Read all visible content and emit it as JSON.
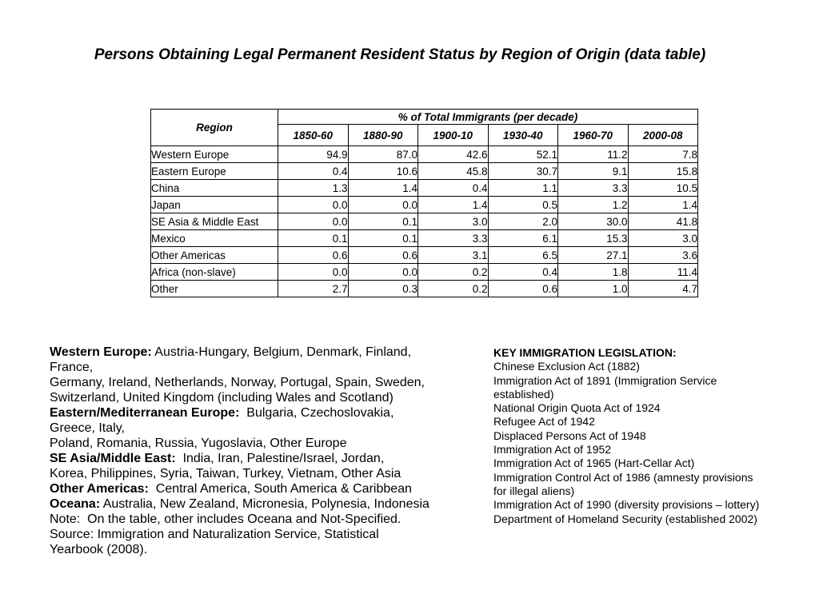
{
  "slide": {
    "title": "Persons Obtaining Legal Permanent Resident Status by Region of Origin (data table)"
  },
  "chart_data": {
    "type": "table",
    "title": "% of Total Immigrants (per decade)",
    "region_header": "Region",
    "columns": [
      "1850-60",
      "1880-90",
      "1900-10",
      "1930-40",
      "1960-70",
      "2000-08"
    ],
    "rows": [
      {
        "region": "Western Europe",
        "values": [
          "94.9",
          "87.0",
          "42.6",
          "52.1",
          "11.2",
          "7.8"
        ]
      },
      {
        "region": "Eastern Europe",
        "values": [
          "0.4",
          "10.6",
          "45.8",
          "30.7",
          "9.1",
          "15.8"
        ]
      },
      {
        "region": "China",
        "values": [
          "1.3",
          "1.4",
          "0.4",
          "1.1",
          "3.3",
          "10.5"
        ]
      },
      {
        "region": "Japan",
        "values": [
          "0.0",
          "0.0",
          "1.4",
          "0.5",
          "1.2",
          "1.4"
        ]
      },
      {
        "region": "SE Asia & Middle East",
        "values": [
          "0.0",
          "0.1",
          "3.0",
          "2.0",
          "30.0",
          "41.8"
        ]
      },
      {
        "region": "Mexico",
        "values": [
          "0.1",
          "0.1",
          "3.3",
          "6.1",
          "15.3",
          "3.0"
        ]
      },
      {
        "region": "Other Americas",
        "values": [
          "0.6",
          "0.6",
          "3.1",
          "6.5",
          "27.1",
          "3.6"
        ]
      },
      {
        "region": "Africa (non-slave)",
        "values": [
          "0.0",
          "0.0",
          "0.2",
          "0.4",
          "1.8",
          "11.4"
        ]
      },
      {
        "region": "Other",
        "values": [
          "2.7",
          "0.3",
          "0.2",
          "0.6",
          "1.0",
          "4.7"
        ]
      }
    ]
  },
  "notes": {
    "regions": [
      {
        "bold": "Western Europe:",
        "text": " Austria-Hungary, Belgium, Denmark, Finland,"
      },
      {
        "bold": "",
        "text": "France,"
      },
      {
        "bold": "",
        "text": "Germany, Ireland, Netherlands, Norway, Portugal, Spain, Sweden,"
      },
      {
        "bold": "",
        "text": "Switzerland, United Kingdom (including Wales and Scotland)"
      },
      {
        "bold": "Eastern/Mediterranean Europe:",
        "text": "  Bulgaria, Czechoslovakia,"
      },
      {
        "bold": "",
        "text": "Greece, Italy,"
      },
      {
        "bold": "",
        "text": "Poland, Romania, Russia, Yugoslavia, Other Europe"
      },
      {
        "bold": "SE Asia/Middle East:",
        "text": "  India, Iran, Palestine/Israel, Jordan,"
      },
      {
        "bold": "",
        "text": "Korea, Philippines, Syria, Taiwan, Turkey, Vietnam, Other Asia"
      },
      {
        "bold": "Other Americas:",
        "text": "  Central America, South America & Caribbean"
      },
      {
        "bold": "Oceana:",
        "text": " Australia, New Zealand, Micronesia, Polynesia, Indonesia"
      },
      {
        "bold": "",
        "text": "Note:  On the table, other includes Oceana and Not-Specified."
      },
      {
        "bold": "",
        "text": "Source: Immigration and Naturalization Service, Statistical"
      },
      {
        "bold": "",
        "text": "Yearbook (2008)."
      }
    ],
    "legislation": {
      "heading": "KEY IMMIGRATION LEGISLATION:",
      "lines": [
        "Chinese Exclusion Act (1882)",
        "Immigration Act of 1891 (Immigration Service",
        "established)",
        "National Origin Quota Act of 1924",
        "Refugee Act of 1942",
        "Displaced Persons Act of 1948",
        "Immigration Act of 1952",
        "Immigration Act of 1965 (Hart-Cellar Act)",
        "Immigration Control Act of 1986 (amnesty provisions",
        "for illegal aliens)",
        "Immigration Act of 1990 (diversity provisions – lottery)",
        "Department of Homeland Security (established 2002)"
      ]
    }
  }
}
